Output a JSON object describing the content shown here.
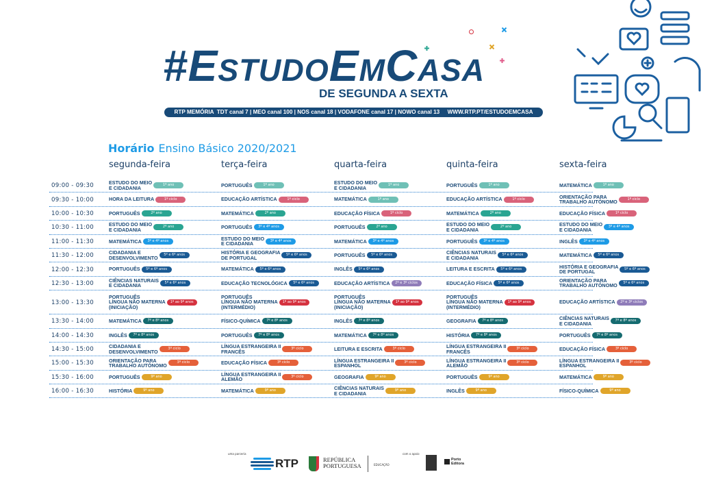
{
  "header": {
    "logo": "#EstudoEmCasa",
    "subtitle": "DE SEGUNDA A SEXTA",
    "channels": "RTP MEMÓRIA  TDT canal 7 | MEO canal 100 | NOS canal 18 | VODAFONE canal 17 | NOWO canal 13     WWW.RTP.PT/ESTUDOEMCASA"
  },
  "schedule": {
    "title_bold": "Horário",
    "title_rest": "Ensino Básico 2020/2021",
    "days": [
      "segunda-feira",
      "terça-feira",
      "quarta-feira",
      "quinta-feira",
      "sexta-feira"
    ]
  },
  "badge_colors": {
    "1º ano": "#6fc0b6",
    "1º ciclo": "#d9637a",
    "2º ano": "#2aa592",
    "3º e 4º anos": "#1e9be6",
    "5º e 6º anos": "#1a5a94",
    "1º ao 9º anos": "#d5323f",
    "2º e 3º ciclos": "#8f7cb9",
    "7º e 8º anos": "#156b70",
    "3º ciclo": "#e5603a",
    "9º ano": "#e0a52a"
  },
  "rows": [
    {
      "time": "09:00 - 09:30",
      "cells": [
        {
          "subject": "ESTUDO DO MEIO\nE CIDADANIA",
          "badge": "1º ano"
        },
        {
          "subject": "PORTUGUÊS",
          "badge": "1º ano"
        },
        {
          "subject": "ESTUDO DO MEIO\nE CIDADANIA",
          "badge": "1º ano"
        },
        {
          "subject": "PORTUGUÊS",
          "badge": "1º ano"
        },
        {
          "subject": "MATEMÁTICA",
          "badge": "1º ano"
        }
      ]
    },
    {
      "time": "09:30 - 10:00",
      "cells": [
        {
          "subject": "HORA DA LEITURA",
          "badge": "1º ciclo"
        },
        {
          "subject": "EDUCAÇÃO ARTÍSTICA",
          "badge": "1º ciclo"
        },
        {
          "subject": "MATEMÁTICA",
          "badge": "1º ano"
        },
        {
          "subject": "EDUCAÇÃO ARTÍSTICA",
          "badge": "1º ciclo"
        },
        {
          "subject": "ORIENTAÇÃO PARA\nTRABALHO AUTÓNOMO",
          "badge": "1º ciclo"
        }
      ]
    },
    {
      "time": "10:00 - 10:30",
      "cells": [
        {
          "subject": "PORTUGUÊS",
          "badge": "2º ano"
        },
        {
          "subject": "MATEMÁTICA",
          "badge": "2º ano"
        },
        {
          "subject": "EDUCAÇÃO FÍSICA",
          "badge": "1º ciclo"
        },
        {
          "subject": "MATEMÁTICA",
          "badge": "2º ano"
        },
        {
          "subject": "EDUCAÇÃO FÍSICA",
          "badge": "1º ciclo"
        }
      ]
    },
    {
      "time": "10:30 - 11:00",
      "cells": [
        {
          "subject": "ESTUDO DO MEIO\nE CIDADANIA",
          "badge": "2º ano"
        },
        {
          "subject": "PORTUGUÊS",
          "badge": "3º e 4º anos"
        },
        {
          "subject": "PORTUGUÊS",
          "badge": "2º ano"
        },
        {
          "subject": "ESTUDO DO MEIO\nE CIDADANIA",
          "badge": "2º ano"
        },
        {
          "subject": "ESTUDO DO MEIO\nE CIDADANIA",
          "badge": "3º e 4º anos"
        }
      ]
    },
    {
      "time": "11:00 - 11:30",
      "cells": [
        {
          "subject": "MATEMÁTICA",
          "badge": "3º e 4º anos"
        },
        {
          "subject": "ESTUDO DO MEIO\nE CIDADANIA",
          "badge": "3º e 4º anos"
        },
        {
          "subject": "MATEMÁTICA",
          "badge": "3º e 4º anos"
        },
        {
          "subject": "PORTUGUÊS",
          "badge": "3º e 4º anos"
        },
        {
          "subject": "INGLÊS",
          "badge": "3º e 4º anos"
        }
      ]
    },
    {
      "time": "11:30 - 12:00",
      "cells": [
        {
          "subject": "CIDADANIA E\nDESENVOLVIMENTO",
          "badge": "5º e 6º anos"
        },
        {
          "subject": "HISTÓRIA E GEOGRAFIA\nDE PORTUGAL",
          "badge": "5º e 6º anos"
        },
        {
          "subject": "PORTUGUÊS",
          "badge": "5º e 6º anos"
        },
        {
          "subject": "CIÊNCIAS NATURAIS\nE CIDADANIA",
          "badge": "5º e 6º anos"
        },
        {
          "subject": "MATEMÁTICA",
          "badge": "5º e 6º anos"
        }
      ]
    },
    {
      "time": "12:00 - 12:30",
      "cells": [
        {
          "subject": "PORTUGUÊS",
          "badge": "5º e 6º anos"
        },
        {
          "subject": "MATEMÁTICA",
          "badge": "5º e 6º anos"
        },
        {
          "subject": "INGLÊS",
          "badge": "5º e 6º anos"
        },
        {
          "subject": "LEITURA E ESCRITA",
          "badge": "5º e 6º anos"
        },
        {
          "subject": "HISTÓRIA E GEOGRAFIA\nDE PORTUGAL",
          "badge": "5º e 6º anos"
        }
      ]
    },
    {
      "time": "12:30 - 13:00",
      "cells": [
        {
          "subject": "CIÊNCIAS NATURAIS\nE CIDADANIA",
          "badge": "5º e 6º anos"
        },
        {
          "subject": "EDUCAÇÃO TECNOLÓGICA",
          "badge": "5º e 6º anos"
        },
        {
          "subject": "EDUCAÇÃO ARTÍSTICA",
          "badge": "2º e 3º ciclos"
        },
        {
          "subject": "EDUCAÇÃO FÍSICA",
          "badge": "5º e 6º anos"
        },
        {
          "subject": "ORIENTAÇÃO PARA\nTRABALHO AUTÓNOMO",
          "badge": "5º e 6º anos"
        }
      ]
    },
    {
      "time": "13:00 - 13:30",
      "cells": [
        {
          "subject": "PORTUGUÊS\nLÍNGUA NÃO MATERNA\n(INICIAÇÃO)",
          "badge": "1º ao 9º anos"
        },
        {
          "subject": "PORTUGUÊS\nLÍNGUA NÃO MATERNA\n(INTERMÉDIO)",
          "badge": "1º ao 9º anos"
        },
        {
          "subject": "PORTUGUÊS\nLÍNGUA NÃO MATERNA\n(INICIAÇÃO)",
          "badge": "1º ao 9º anos"
        },
        {
          "subject": "PORTUGUÊS\nLÍNGUA NÃO MATERNA\n(INTERMÉDIO)",
          "badge": "1º ao 9º anos"
        },
        {
          "subject": "EDUCAÇÃO ARTÍSTICA",
          "badge": "2º e 3º ciclos"
        }
      ]
    },
    {
      "time": "13:30 - 14:00",
      "cells": [
        {
          "subject": "MATEMÁTICA",
          "badge": "7º e 8º anos"
        },
        {
          "subject": "FÍSICO-QUÍMICA",
          "badge": "7º e 8º anos"
        },
        {
          "subject": "INGLÊS",
          "badge": "7º e 8º anos"
        },
        {
          "subject": "GEOGRAFIA",
          "badge": "7º e 8º anos"
        },
        {
          "subject": "CIÊNCIAS NATURAIS\nE CIDADANIA",
          "badge": "7º e 8º anos"
        }
      ]
    },
    {
      "time": "14:00 - 14:30",
      "cells": [
        {
          "subject": "INGLÊS",
          "badge": "7º e 8º anos"
        },
        {
          "subject": "PORTUGUÊS",
          "badge": "7º e 8º anos"
        },
        {
          "subject": "MATEMÁTICA",
          "badge": "7º e 8º anos"
        },
        {
          "subject": "HISTÓRIA",
          "badge": "7º e 8º anos"
        },
        {
          "subject": "PORTUGUÊS",
          "badge": "7º e 8º anos"
        }
      ]
    },
    {
      "time": "14:30 - 15:00",
      "cells": [
        {
          "subject": "CIDADANIA E\nDESENVOLVIMENTO",
          "badge": "3º ciclo"
        },
        {
          "subject": "LÍNGUA ESTRANGEIRA II\nFRANCÊS",
          "badge": "3º ciclo"
        },
        {
          "subject": "LEITURA E ESCRITA",
          "badge": "3º ciclo"
        },
        {
          "subject": "LÍNGUA ESTRANGEIRA II\nFRANCÊS",
          "badge": "3º ciclo"
        },
        {
          "subject": "EDUCAÇÃO FÍSICA",
          "badge": "3º ciclo"
        }
      ]
    },
    {
      "time": "15:00 - 15:30",
      "cells": [
        {
          "subject": "ORIENTAÇÃO PARA\nTRABALHO AUTÓNOMO",
          "badge": "3º ciclo"
        },
        {
          "subject": "EDUCAÇÃO FÍSICA",
          "badge": "3º ciclo"
        },
        {
          "subject": "LÍNGUA ESTRANGEIRA II\nESPANHOL",
          "badge": "3º ciclo"
        },
        {
          "subject": "LÍNGUA ESTRANGEIRA II\nALEMÃO",
          "badge": "3º ciclo"
        },
        {
          "subject": "LÍNGUA ESTRANGEIRA II\nESPANHOL",
          "badge": "3º ciclo"
        }
      ]
    },
    {
      "time": "15:30 - 16:00",
      "cells": [
        {
          "subject": "PORTUGUÊS",
          "badge": "9º ano"
        },
        {
          "subject": "LÍNGUA ESTRANGEIRA II\nALEMÃO",
          "badge": "3º ciclo"
        },
        {
          "subject": "GEOGRAFIA",
          "badge": "9º ano"
        },
        {
          "subject": "PORTUGUÊS",
          "badge": "9º ano"
        },
        {
          "subject": "MATEMÁTICA",
          "badge": "9º ano"
        }
      ]
    },
    {
      "time": "16:00 - 16:30",
      "cells": [
        {
          "subject": "HISTÓRIA",
          "badge": "9º ano"
        },
        {
          "subject": "MATEMÁTICA",
          "badge": "9º ano"
        },
        {
          "subject": "CIÊNCIAS NATURAIS\nE CIDADANIA",
          "badge": "9º ano"
        },
        {
          "subject": "INGLÊS",
          "badge": "9º ano"
        },
        {
          "subject": "FÍSICO-QUÍMICA",
          "badge": "9º ano"
        }
      ]
    }
  ],
  "footer": {
    "partnership_label": "uma parceria",
    "rtp": "RTP",
    "republica": "REPÚBLICA\nPORTUGUESA",
    "educacao": "EDUCAÇÃO",
    "support_label": "com o apoio",
    "porto_editora": "Porto\nEditora"
  },
  "colors": {
    "brand": "#184a78",
    "accent": "#1e9be6"
  }
}
